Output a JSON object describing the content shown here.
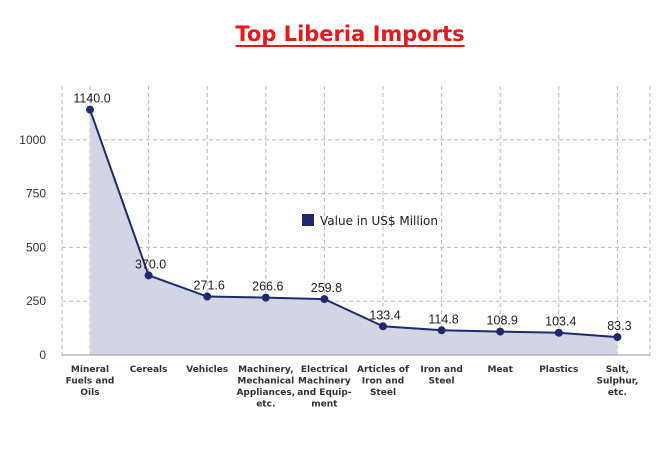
{
  "chart_data": {
    "type": "area",
    "title": "Top Liberia Imports",
    "categories": [
      [
        "Mineral",
        "Fuels and",
        "Oils"
      ],
      [
        "Cereals"
      ],
      [
        "Vehicles"
      ],
      [
        "Machinery,",
        "Mechanical",
        "Appliances,",
        "etc."
      ],
      [
        "Electrical",
        "Machinery",
        "and Equip-",
        "ment"
      ],
      [
        "Articles of",
        "Iron and",
        "Steel"
      ],
      [
        "Iron and",
        "Steel"
      ],
      [
        "Meat"
      ],
      [
        "Plastics"
      ],
      [
        "Salt,",
        "Sulphur,",
        "etc."
      ]
    ],
    "series": [
      {
        "name": "Value in US$ Million",
        "values": [
          1140.0,
          370.0,
          271.6,
          266.6,
          259.8,
          133.4,
          114.8,
          108.9,
          103.4,
          83.3
        ],
        "labels": [
          "1140.0",
          "370.0",
          "271.6",
          "266.6",
          "259.8",
          "133.4",
          "114.8",
          "108.9",
          "103.4",
          "83.3"
        ]
      }
    ],
    "yticks": [
      "0",
      "250",
      "500",
      "750",
      "1000"
    ],
    "ylim": [
      0,
      1250
    ],
    "grid": true,
    "legend": "center",
    "colors": {
      "line": "#1f2a6e",
      "fill": "#d3d5e4",
      "title": "#e8191c",
      "grid": "#bbbbbb"
    }
  }
}
